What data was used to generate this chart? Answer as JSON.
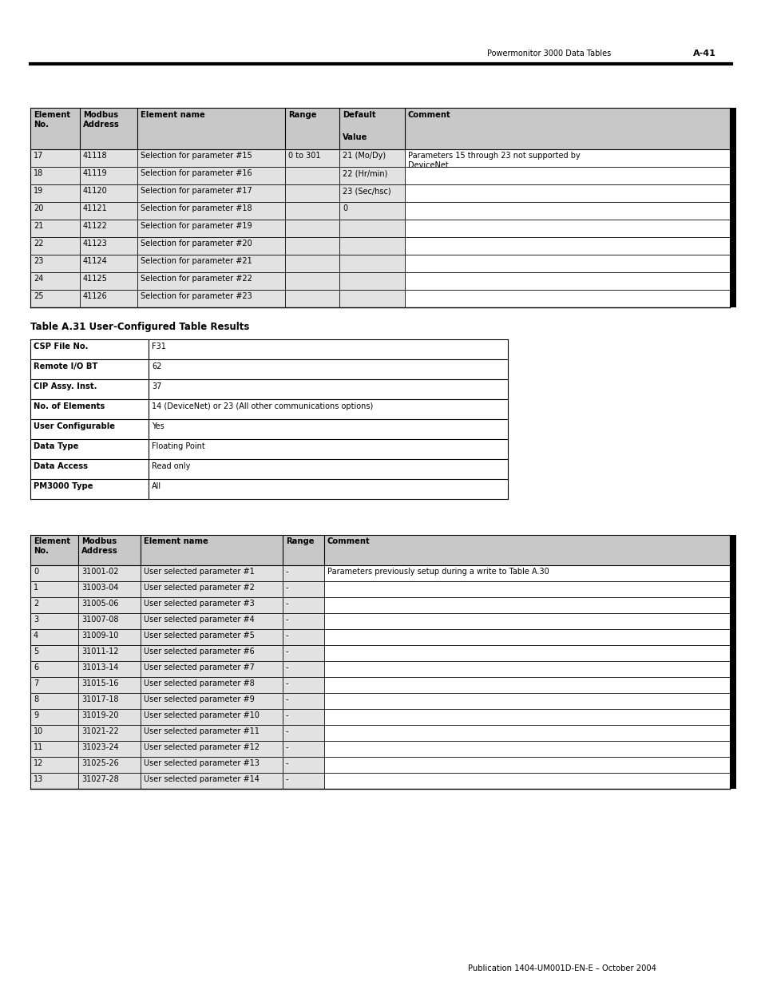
{
  "header_text": "Powermonitor 3000 Data Tables",
  "page_num": "A-41",
  "top_table_rows": [
    [
      "17",
      "41118",
      "Selection for parameter #15",
      "0 to 301",
      "21 (Mo/Dy)",
      "Parameters 15 through 23 not supported by\nDeviceNet"
    ],
    [
      "18",
      "41119",
      "Selection for parameter #16",
      "",
      "22 (Hr/min)",
      ""
    ],
    [
      "19",
      "41120",
      "Selection for parameter #17",
      "",
      "23 (Sec/hsc)",
      ""
    ],
    [
      "20",
      "41121",
      "Selection for parameter #18",
      "",
      "0",
      ""
    ],
    [
      "21",
      "41122",
      "Selection for parameter #19",
      "",
      "",
      ""
    ],
    [
      "22",
      "41123",
      "Selection for parameter #20",
      "",
      "",
      ""
    ],
    [
      "23",
      "41124",
      "Selection for parameter #21",
      "",
      "",
      ""
    ],
    [
      "24",
      "41125",
      "Selection for parameter #22",
      "",
      "",
      ""
    ],
    [
      "25",
      "41126",
      "Selection for parameter #23",
      "",
      "",
      ""
    ]
  ],
  "section_title": "Table A.31 User-Configured Table Results",
  "info_table_rows": [
    [
      "CSP File No.",
      "F31"
    ],
    [
      "Remote I/O BT",
      "62"
    ],
    [
      "CIP Assy. Inst.",
      "37"
    ],
    [
      "No. of Elements",
      "14 (DeviceNet) or 23 (All other communications options)"
    ],
    [
      "User Configurable",
      "Yes"
    ],
    [
      "Data Type",
      "Floating Point"
    ],
    [
      "Data Access",
      "Read only"
    ],
    [
      "PM3000 Type",
      "All"
    ]
  ],
  "bottom_table_rows": [
    [
      "0",
      "31001-02",
      "User selected parameter #1",
      "-",
      "Parameters previously setup during a write to Table A.30"
    ],
    [
      "1",
      "31003-04",
      "User selected parameter #2",
      "-",
      ""
    ],
    [
      "2",
      "31005-06",
      "User selected parameter #3",
      "-",
      ""
    ],
    [
      "3",
      "31007-08",
      "User selected parameter #4",
      "-",
      ""
    ],
    [
      "4",
      "31009-10",
      "User selected parameter #5",
      "-",
      ""
    ],
    [
      "5",
      "31011-12",
      "User selected parameter #6",
      "-",
      ""
    ],
    [
      "6",
      "31013-14",
      "User selected parameter #7",
      "-",
      ""
    ],
    [
      "7",
      "31015-16",
      "User selected parameter #8",
      "-",
      ""
    ],
    [
      "8",
      "31017-18",
      "User selected parameter #9",
      "-",
      ""
    ],
    [
      "9",
      "31019-20",
      "User selected parameter #10",
      "-",
      ""
    ],
    [
      "10",
      "31021-22",
      "User selected parameter #11",
      "-",
      ""
    ],
    [
      "11",
      "31023-24",
      "User selected parameter #12",
      "-",
      ""
    ],
    [
      "12",
      "31025-26",
      "User selected parameter #13",
      "-",
      ""
    ],
    [
      "13",
      "31027-28",
      "User selected parameter #14",
      "-",
      ""
    ]
  ],
  "footer_text": "Publication 1404-UM001D-EN-E – October 2004",
  "bg_color": "#ffffff",
  "gray_bg": "#e2e2e2",
  "header_bg": "#c8c8c8",
  "border_color": "#000000"
}
